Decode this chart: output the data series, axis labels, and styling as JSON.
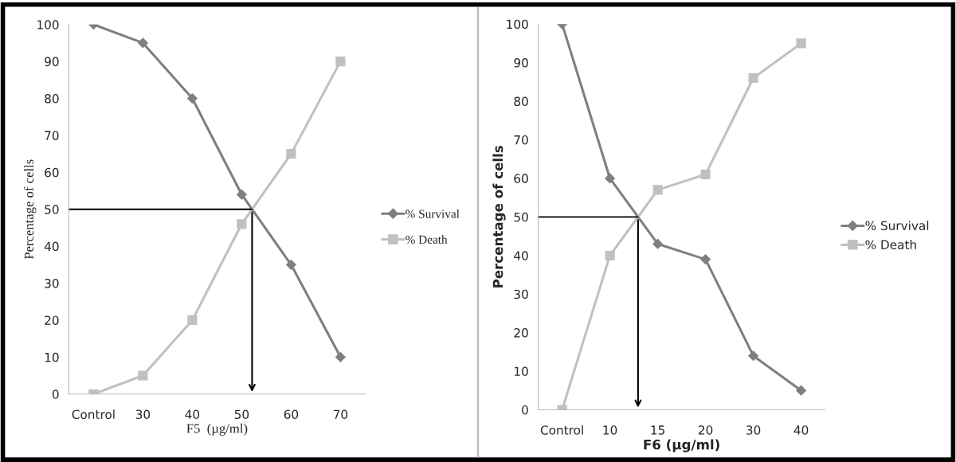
{
  "chart_data": [
    {
      "type": "line",
      "xlabel": "F5  (µg/ml)",
      "ylabel": "Percentage of cells",
      "categories": [
        "Control",
        "30",
        "40",
        "50",
        "60",
        "70"
      ],
      "ylim": [
        0,
        100
      ],
      "yticks": [
        0,
        10,
        20,
        30,
        40,
        50,
        60,
        70,
        80,
        90,
        100
      ],
      "legend": "right",
      "grid": false,
      "series": [
        {
          "name": "% Survival",
          "color": "#7f7f7f",
          "marker": "diamond",
          "values": [
            100,
            95,
            80,
            54,
            35,
            10
          ]
        },
        {
          "name": "% Death",
          "color": "#c0c0c0",
          "marker": "square",
          "values": [
            0,
            5,
            20,
            46,
            65,
            90
          ]
        }
      ],
      "ref_lines": [
        {
          "axis": "y",
          "value": 50,
          "color": "#000000"
        }
      ]
    },
    {
      "type": "line",
      "xlabel": "F6 (µg/ml)",
      "ylabel": "Percentage of cells",
      "categories": [
        "Control",
        "10",
        "15",
        "20",
        "30",
        "40"
      ],
      "ylim": [
        0,
        100
      ],
      "yticks": [
        0,
        10,
        20,
        30,
        40,
        50,
        60,
        70,
        80,
        90,
        100
      ],
      "legend": "right",
      "grid": false,
      "series": [
        {
          "name": "% Survival",
          "color": "#7f7f7f",
          "marker": "diamond",
          "values": [
            100,
            60,
            43,
            39,
            14,
            5
          ]
        },
        {
          "name": "% Death",
          "color": "#c0c0c0",
          "marker": "square",
          "values": [
            0,
            40,
            57,
            61,
            86,
            95
          ]
        }
      ],
      "ref_lines": [
        {
          "axis": "y",
          "value": 50,
          "color": "#000000"
        }
      ]
    }
  ]
}
